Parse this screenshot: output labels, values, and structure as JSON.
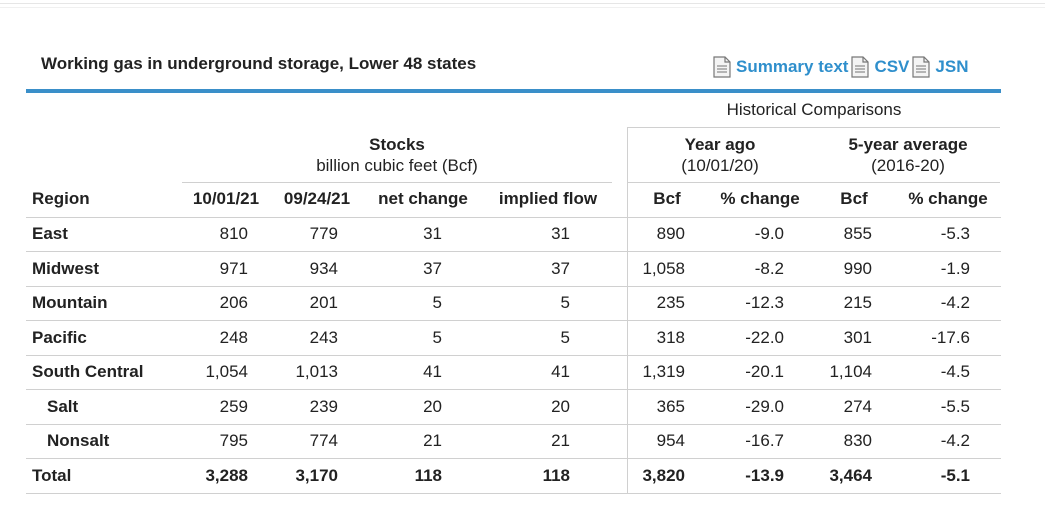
{
  "title": "Working gas in underground storage, Lower 48 states",
  "links": [
    {
      "label": "Summary text",
      "icon": "document-icon"
    },
    {
      "label": "CSV",
      "icon": "document-icon"
    },
    {
      "label": "JSN",
      "icon": "document-icon"
    }
  ],
  "headers": {
    "historical": "Historical Comparisons",
    "stocks": "Stocks",
    "stocks_unit": "billion cubic feet (Bcf)",
    "year_ago": "Year ago",
    "year_ago_date": "(10/01/20)",
    "five_year": "5-year average",
    "five_year_range": "(2016-20)",
    "columns": [
      "Region",
      "10/01/21",
      "09/24/21",
      "net change",
      "implied flow",
      "Bcf",
      "% change",
      "Bcf",
      "% change"
    ]
  },
  "rows": [
    {
      "region": "East",
      "v1": "810",
      "v2": "779",
      "net": "31",
      "flow": "31",
      "ya_bcf": "890",
      "ya_pct": "-9.0",
      "fy_bcf": "855",
      "fy_pct": "-5.3"
    },
    {
      "region": "Midwest",
      "v1": "971",
      "v2": "934",
      "net": "37",
      "flow": "37",
      "ya_bcf": "1,058",
      "ya_pct": "-8.2",
      "fy_bcf": "990",
      "fy_pct": "-1.9"
    },
    {
      "region": "Mountain",
      "v1": "206",
      "v2": "201",
      "net": "5",
      "flow": "5",
      "ya_bcf": "235",
      "ya_pct": "-12.3",
      "fy_bcf": "215",
      "fy_pct": "-4.2"
    },
    {
      "region": "Pacific",
      "v1": "248",
      "v2": "243",
      "net": "5",
      "flow": "5",
      "ya_bcf": "318",
      "ya_pct": "-22.0",
      "fy_bcf": "301",
      "fy_pct": "-17.6"
    },
    {
      "region": "South Central",
      "v1": "1,054",
      "v2": "1,013",
      "net": "41",
      "flow": "41",
      "ya_bcf": "1,319",
      "ya_pct": "-20.1",
      "fy_bcf": "1,104",
      "fy_pct": "-4.5"
    },
    {
      "region": "Salt",
      "v1": "259",
      "v2": "239",
      "net": "20",
      "flow": "20",
      "ya_bcf": "365",
      "ya_pct": "-29.0",
      "fy_bcf": "274",
      "fy_pct": "-5.5"
    },
    {
      "region": "Nonsalt",
      "v1": "795",
      "v2": "774",
      "net": "21",
      "flow": "21",
      "ya_bcf": "954",
      "ya_pct": "-16.7",
      "fy_bcf": "830",
      "fy_pct": "-4.2"
    },
    {
      "region": "Total",
      "v1": "3,288",
      "v2": "3,170",
      "net": "118",
      "flow": "118",
      "ya_bcf": "3,820",
      "ya_pct": "-13.9",
      "fy_bcf": "3,464",
      "fy_pct": "-5.1"
    }
  ],
  "colors": {
    "accent": "#3a8fc9",
    "link": "#2f8fcc",
    "rule": "#d0d0d0"
  }
}
